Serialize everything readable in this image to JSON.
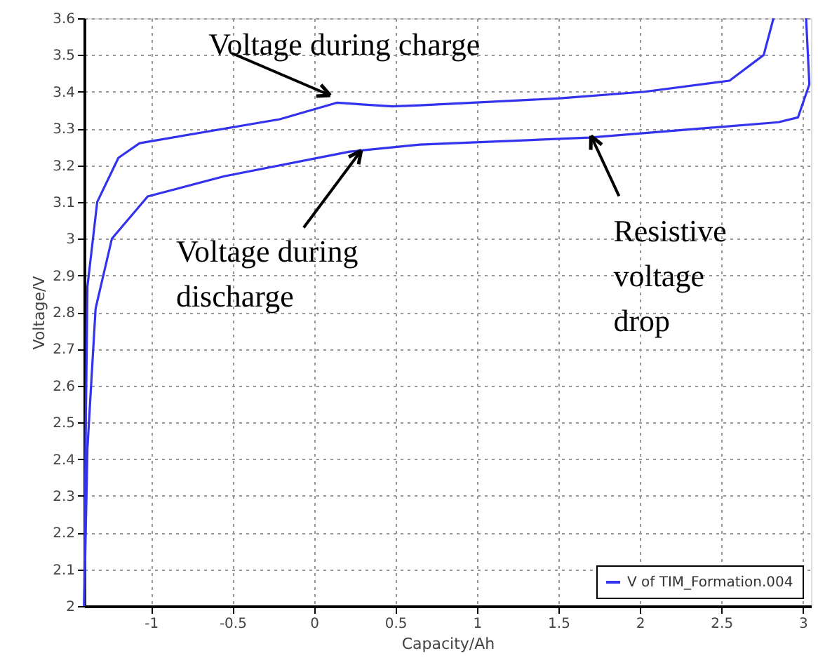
{
  "chart_data": {
    "type": "line",
    "xlabel": "Capacity/Ah",
    "ylabel": "Voltage/V",
    "series": [
      {
        "name": "V of TIM_Formation.004",
        "color": "#3333ee",
        "x": [
          -1.41,
          -1.4,
          -1.39,
          -1.33,
          -1.2,
          -1.07,
          -0.21,
          0.14,
          0.48,
          0.65,
          1.51,
          2.03,
          2.55,
          2.76,
          2.82
        ],
        "values": [
          2.0,
          2.5,
          2.87,
          3.1,
          3.22,
          3.26,
          3.325,
          3.37,
          3.36,
          3.363,
          3.382,
          3.4,
          3.43,
          3.5,
          3.6
        ]
      },
      {
        "color": "#3333ee",
        "x": [
          3.02,
          3.04,
          2.97,
          2.85,
          1.69,
          0.65,
          0.22,
          -0.55,
          -1.02,
          -1.24,
          -1.34,
          -1.39,
          -1.41
        ],
        "values": [
          3.6,
          3.42,
          3.33,
          3.317,
          3.275,
          3.256,
          3.237,
          3.17,
          3.115,
          3.0,
          2.81,
          2.43,
          2.0
        ]
      }
    ],
    "xlim": [
      -1.41,
      3.05
    ],
    "xticks": [
      -1,
      -0.5,
      0,
      0.5,
      1,
      1.5,
      2,
      2.5,
      3
    ],
    "ylim": [
      2,
      3.6
    ],
    "yticks": [
      2,
      2.1,
      2.2,
      2.3,
      2.4,
      2.5,
      2.6,
      2.7,
      2.8,
      2.9,
      3,
      3.1,
      3.2,
      3.3,
      3.4,
      3.5,
      3.6
    ],
    "grid": true,
    "legend": "bottom right",
    "marker": "none",
    "line_style": "solid",
    "annotations": [
      {
        "text": "Voltage during charge",
        "x": 0.1,
        "y": 3.39
      },
      {
        "text": "Voltage during\ndischarge",
        "x": 0.29,
        "y": 3.24
      },
      {
        "text": "Resistive\nvoltage\ndrop",
        "x": 1.7,
        "y": 3.28
      }
    ]
  }
}
